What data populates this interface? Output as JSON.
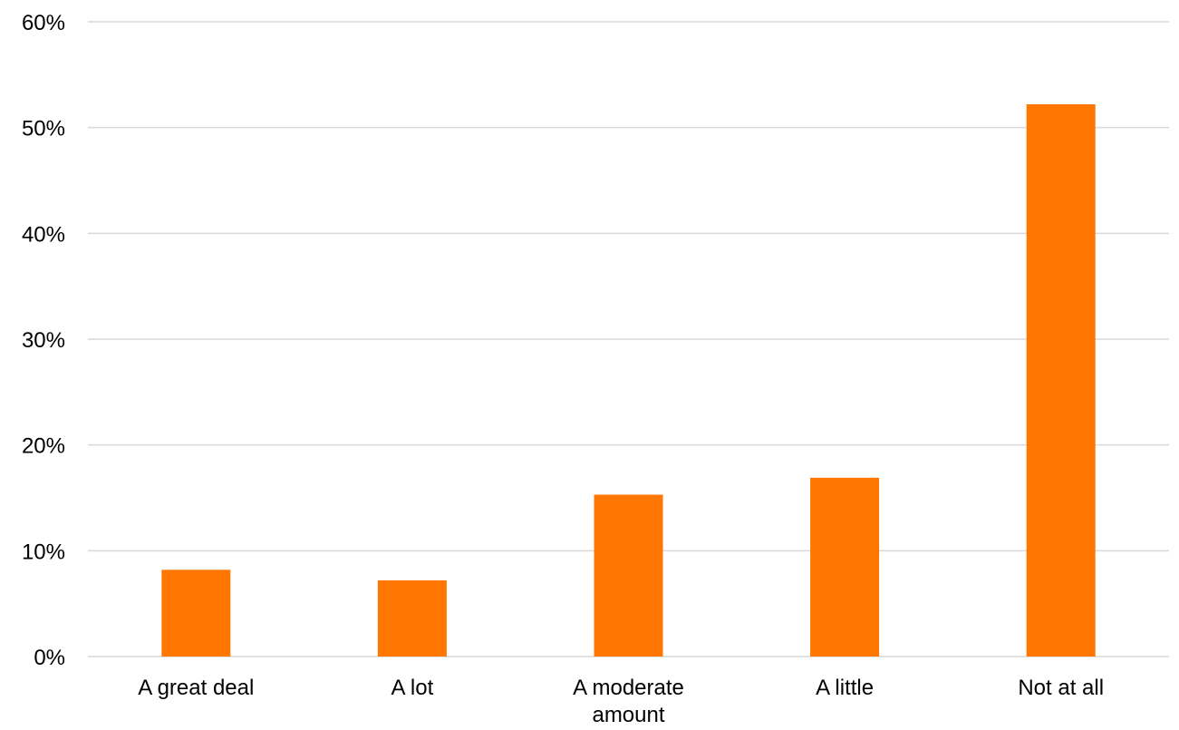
{
  "chart_data": {
    "type": "bar",
    "categories": [
      [
        "A great deal"
      ],
      [
        "A lot"
      ],
      [
        "A moderate",
        "amount"
      ],
      [
        "A little"
      ],
      [
        "Not at all"
      ]
    ],
    "values": [
      8.2,
      7.2,
      15.3,
      16.9,
      52.2
    ],
    "y_ticks": [
      "0%",
      "10%",
      "20%",
      "30%",
      "40%",
      "50%",
      "60%"
    ],
    "ylim": [
      0,
      60
    ],
    "grid": true,
    "bar_color": "#FF7600",
    "gridline_color": "#D9D9D9",
    "title": "",
    "xlabel": "",
    "ylabel": ""
  }
}
